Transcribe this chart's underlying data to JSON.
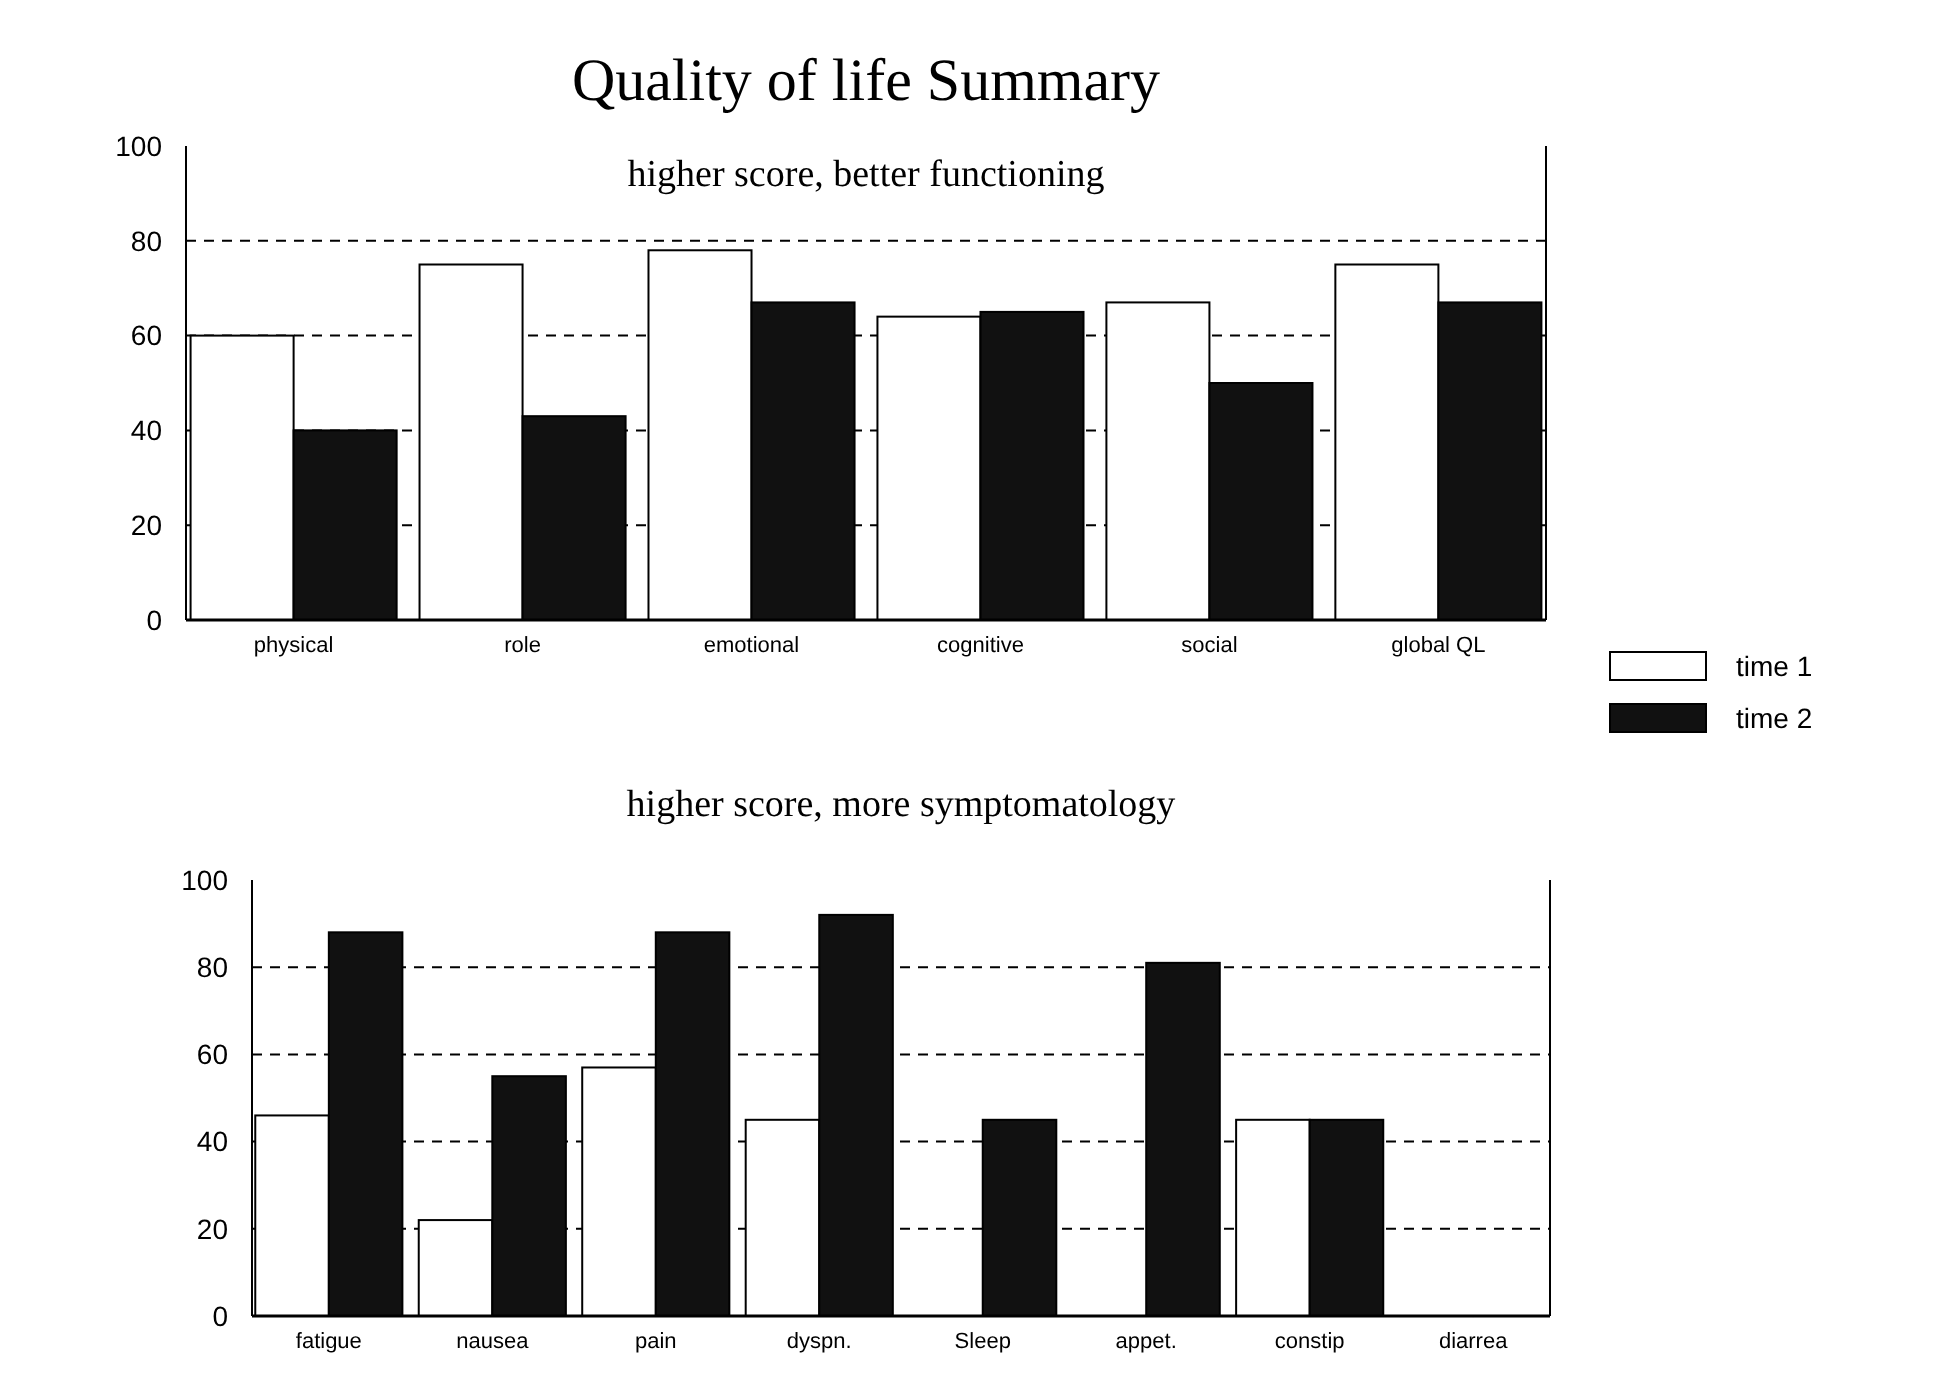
{
  "chart_data": [
    {
      "type": "bar",
      "title": "Quality of life Summary",
      "subtitle": "higher score, better functioning",
      "categories": [
        "physical",
        "role",
        "emotional",
        "cognitive",
        "social",
        "global QL"
      ],
      "series": [
        {
          "name": "time 1",
          "color": "#ffffff",
          "values": [
            60,
            75,
            78,
            64,
            67,
            75
          ]
        },
        {
          "name": "time 2",
          "color": "#111111",
          "values": [
            40,
            43,
            67,
            65,
            50,
            67
          ]
        }
      ],
      "ylim": [
        0,
        100
      ],
      "yticks": [
        0,
        20,
        40,
        60,
        80,
        100
      ],
      "grid": "y",
      "legend": "right"
    },
    {
      "type": "bar",
      "subtitle": "higher score, more symptomatology",
      "categories": [
        "fatigue",
        "nausea",
        "pain",
        "dyspn.",
        "Sleep",
        "appet.",
        "constip",
        "diarrea"
      ],
      "series": [
        {
          "color": "#ffffff",
          "values": [
            46,
            22,
            57,
            45,
            0,
            0,
            45,
            0
          ]
        },
        {
          "color": "#111111",
          "values": [
            88,
            55,
            88,
            92,
            45,
            81,
            45,
            0
          ]
        }
      ],
      "ylim": [
        0,
        100
      ],
      "yticks": [
        0,
        20,
        40,
        60,
        80,
        100
      ],
      "grid": "y"
    }
  ]
}
